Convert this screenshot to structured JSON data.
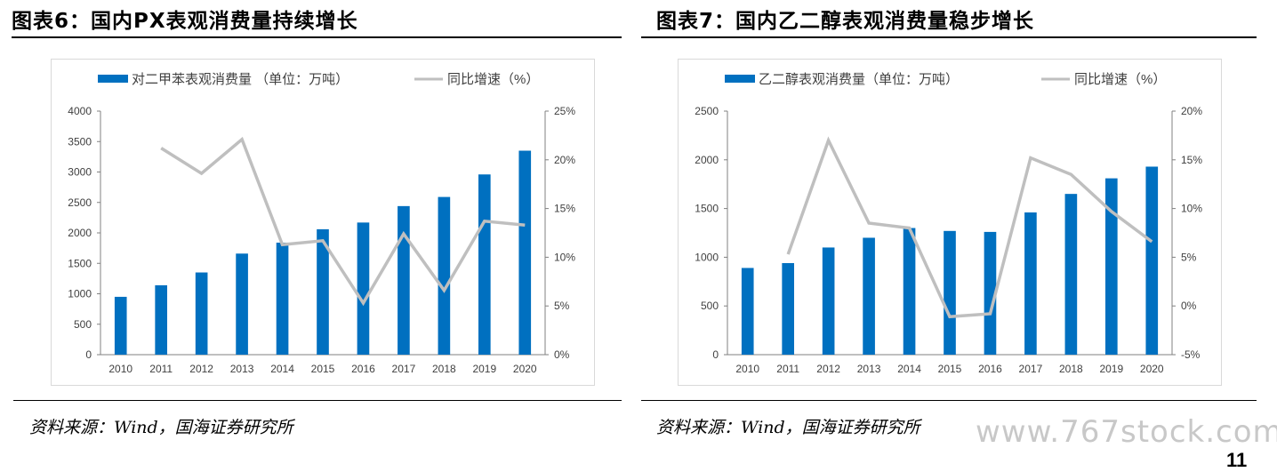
{
  "panels": [
    {
      "title": "图表6：国内PX表观消费量持续增长",
      "source": "资料来源：Wind，国海证券研究所",
      "chart_data": {
        "type": "bar",
        "categories": [
          "2010",
          "2011",
          "2012",
          "2013",
          "2014",
          "2015",
          "2016",
          "2017",
          "2018",
          "2019",
          "2020"
        ],
        "series": [
          {
            "name": "对二甲苯表观消费量 （单位：万吨）",
            "type": "bar",
            "axis": "left",
            "values": [
              950,
              1140,
              1350,
              1660,
              1840,
              2060,
              2170,
              2440,
              2590,
              2960,
              3350
            ]
          },
          {
            "name": "同比增速（%）",
            "type": "line",
            "axis": "right",
            "values": [
              null,
              21.2,
              18.6,
              22.1,
              11.3,
              11.7,
              5.3,
              12.4,
              6.6,
              13.7,
              13.3
            ]
          }
        ],
        "ylim": [
          0,
          4000
        ],
        "yticks": [
          "0",
          "500",
          "1000",
          "1500",
          "2000",
          "2500",
          "3000",
          "3500",
          "4000"
        ],
        "y2lim": [
          0,
          25
        ],
        "y2ticks": [
          "0%",
          "5%",
          "10%",
          "15%",
          "20%",
          "25%"
        ],
        "legend_position": "top",
        "colors": {
          "bar": "#0070c0",
          "line": "#bfbfbf"
        }
      }
    },
    {
      "title": "图表7：国内乙二醇表观消费量稳步增长",
      "source": "资料来源：Wind，国海证券研究所",
      "chart_data": {
        "type": "bar",
        "categories": [
          "2010",
          "2011",
          "2012",
          "2013",
          "2014",
          "2015",
          "2016",
          "2017",
          "2018",
          "2019",
          "2020"
        ],
        "series": [
          {
            "name": "乙二醇表观消费量（单位：万吨）",
            "type": "bar",
            "axis": "left",
            "values": [
              890,
              940,
              1100,
              1200,
              1300,
              1270,
              1260,
              1460,
              1650,
              1810,
              1930
            ]
          },
          {
            "name": "同比增速（%）",
            "type": "line",
            "axis": "right",
            "values": [
              null,
              5.3,
              17.0,
              8.5,
              8.0,
              -1.1,
              -0.8,
              15.2,
              13.5,
              9.7,
              6.6
            ]
          }
        ],
        "ylim": [
          0,
          2500
        ],
        "yticks": [
          "0",
          "500",
          "1000",
          "1500",
          "2000",
          "2500"
        ],
        "y2lim": [
          -5,
          20
        ],
        "y2ticks": [
          "-5%",
          "0%",
          "5%",
          "10%",
          "15%",
          "20%"
        ],
        "legend_position": "top",
        "colors": {
          "bar": "#0070c0",
          "line": "#bfbfbf"
        }
      }
    }
  ],
  "watermark": "www.767stock.com",
  "page_number": "11"
}
